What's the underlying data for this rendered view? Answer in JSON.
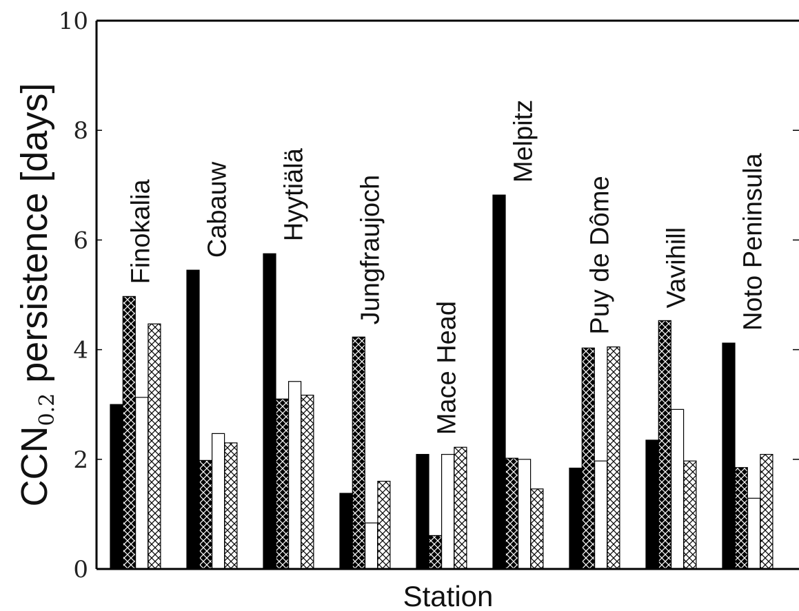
{
  "chart_data": {
    "type": "bar",
    "xlabel": "Station",
    "ylabel": {
      "main": "CCN",
      "subscript": "0.2",
      "rest": " persistence [days]"
    },
    "ylim": [
      0,
      10
    ],
    "yticks": [
      "0",
      "2",
      "4",
      "6",
      "8",
      "10"
    ],
    "grid": false,
    "legend": "none",
    "categories": [
      "Finokalia",
      "Cabauw",
      "Hyytiälä",
      "Jungfraujoch",
      "Mace Head",
      "Melpitz",
      "Puy de Dôme",
      "Vavihill",
      "Noto Peninsula"
    ],
    "series": [
      {
        "fill": "solid-black",
        "values": [
          3.0,
          5.45,
          5.75,
          1.38,
          2.09,
          6.82,
          1.84,
          2.35,
          4.12
        ]
      },
      {
        "fill": "black-crosshatch",
        "values": [
          4.97,
          1.98,
          3.1,
          4.23,
          0.61,
          2.02,
          4.03,
          4.53,
          1.85
        ]
      },
      {
        "fill": "white",
        "values": [
          3.13,
          2.47,
          3.42,
          0.84,
          2.09,
          2.0,
          1.97,
          2.91,
          1.29
        ]
      },
      {
        "fill": "white-crosshatch",
        "values": [
          4.47,
          2.3,
          3.17,
          1.6,
          2.22,
          1.46,
          4.05,
          1.97,
          2.09
        ]
      }
    ],
    "colors": {
      "solid": "#000000",
      "outline": "#000000",
      "background": "#ffffff"
    }
  }
}
